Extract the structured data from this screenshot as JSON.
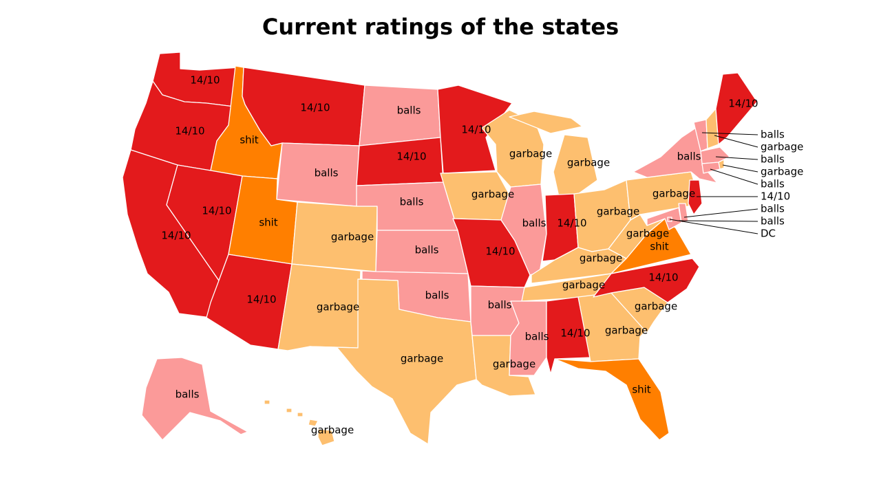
{
  "title": "Current ratings of the states",
  "legend_colors": {
    "14/10": "#e31a1c",
    "shit": "#ff7f00",
    "garbage": "#fdbf6f",
    "balls": "#fb9a99"
  },
  "states": {
    "WA": "14/10",
    "OR": "14/10",
    "CA": "14/10",
    "ID": "shit",
    "NV": "14/10",
    "MT": "14/10",
    "WY": "balls",
    "UT": "shit",
    "AZ": "14/10",
    "CO": "garbage",
    "NM": "garbage",
    "ND": "balls",
    "SD": "14/10",
    "NE": "balls",
    "KS": "balls",
    "OK": "balls",
    "TX": "garbage",
    "MN": "14/10",
    "IA": "garbage",
    "MO": "14/10",
    "AR": "balls",
    "LA": "garbage",
    "WI": "garbage",
    "IL": "balls",
    "MI": "garbage",
    "IN": "14/10",
    "OH": "garbage",
    "KY": "garbage",
    "TN": "garbage",
    "MS": "balls",
    "AL": "14/10",
    "GA": "garbage",
    "FL": "shit",
    "SC": "garbage",
    "NC": "14/10",
    "VA": "shit",
    "WV": "garbage",
    "PA": "garbage",
    "NY": "balls",
    "ME": "14/10",
    "AK": "balls",
    "HI": "garbage",
    "VT": "balls",
    "NH": "garbage",
    "MA": "balls",
    "RI": "garbage",
    "CT": "balls",
    "NJ": "14/10",
    "DE": "balls",
    "MD": "balls",
    "DC": "DC"
  },
  "callouts": [
    {
      "state": "VT",
      "text": "balls"
    },
    {
      "state": "NH",
      "text": "garbage"
    },
    {
      "state": "MA",
      "text": "balls"
    },
    {
      "state": "RI",
      "text": "garbage"
    },
    {
      "state": "CT",
      "text": "balls"
    },
    {
      "state": "NJ",
      "text": "14/10"
    },
    {
      "state": "DE",
      "text": "balls"
    },
    {
      "state": "MD",
      "text": "balls"
    },
    {
      "state": "DC",
      "text": "DC"
    }
  ]
}
